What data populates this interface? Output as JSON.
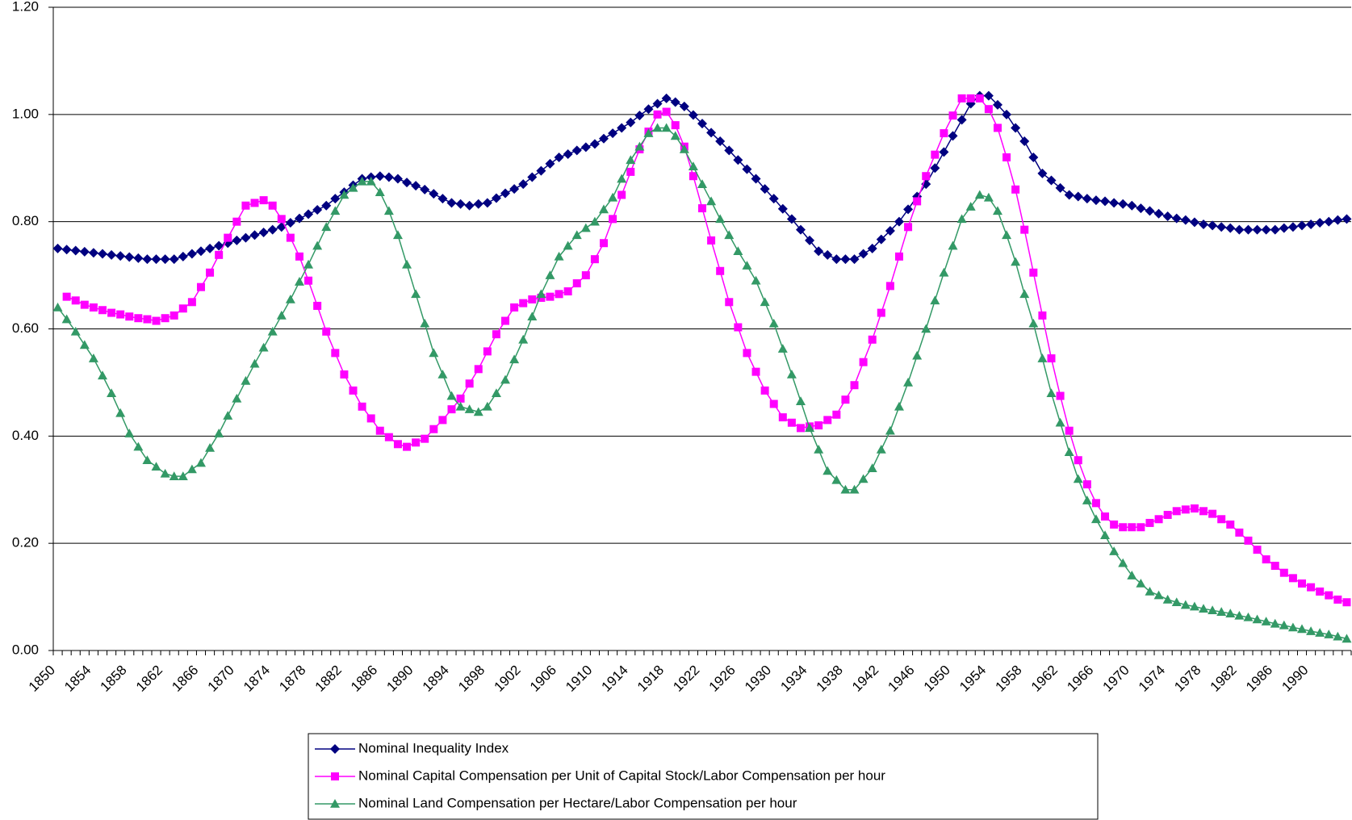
{
  "chart_data": {
    "type": "line",
    "categories": [
      "1850",
      null,
      null,
      null,
      "1854",
      null,
      null,
      null,
      "1858",
      null,
      null,
      null,
      "1862",
      null,
      null,
      null,
      "1866",
      null,
      null,
      null,
      "1870",
      null,
      null,
      null,
      "1874",
      null,
      null,
      null,
      "1878",
      null,
      null,
      null,
      "1882",
      null,
      null,
      null,
      "1886",
      null,
      null,
      null,
      "1890",
      null,
      null,
      null,
      "1894",
      null,
      null,
      null,
      "1898",
      null,
      null,
      null,
      "1902",
      null,
      null,
      null,
      "1906",
      null,
      null,
      null,
      "1910",
      null,
      null,
      null,
      "1914",
      null,
      null,
      null,
      "1918",
      null,
      null,
      null,
      "1922",
      null,
      null,
      null,
      "1926",
      null,
      null,
      null,
      "1930",
      null,
      null,
      null,
      "1934",
      null,
      null,
      null,
      "1938",
      null,
      null,
      null,
      "1942",
      null,
      null,
      null,
      "1946",
      null,
      null,
      null,
      "1950",
      null,
      null,
      null,
      "1954",
      null,
      null,
      null,
      "1958",
      null,
      null,
      null,
      "1962",
      null,
      null,
      null,
      "1966",
      null,
      null,
      null,
      "1970",
      null,
      null,
      null,
      "1974",
      null,
      null,
      null,
      "1978",
      null,
      null,
      null,
      "1982",
      null,
      null,
      null,
      "1986",
      null,
      null,
      null,
      "1990",
      null,
      null,
      null,
      null
    ],
    "series": [
      {
        "name": "Nominal Inequality Index",
        "color": "#000080",
        "marker": "diamond",
        "values": [
          0.75,
          0.748,
          0.746,
          0.744,
          0.742,
          0.74,
          0.738,
          0.736,
          0.734,
          0.732,
          0.73,
          0.73,
          0.73,
          0.73,
          0.735,
          0.74,
          0.745,
          0.75,
          0.755,
          0.76,
          0.765,
          0.77,
          0.775,
          0.78,
          0.785,
          0.79,
          0.798,
          0.806,
          0.814,
          0.822,
          0.83,
          0.843,
          0.855,
          0.868,
          0.88,
          0.883,
          0.885,
          0.883,
          0.88,
          0.873,
          0.867,
          0.86,
          0.852,
          0.843,
          0.835,
          0.833,
          0.83,
          0.833,
          0.835,
          0.844,
          0.853,
          0.861,
          0.87,
          0.883,
          0.895,
          0.908,
          0.92,
          0.926,
          0.933,
          0.939,
          0.945,
          0.955,
          0.965,
          0.975,
          0.985,
          0.998,
          1.01,
          1.02,
          1.03,
          1.023,
          1.015,
          0.999,
          0.983,
          0.966,
          0.95,
          0.933,
          0.915,
          0.898,
          0.88,
          0.861,
          0.843,
          0.824,
          0.805,
          0.785,
          0.765,
          0.745,
          0.738,
          0.73,
          0.73,
          0.73,
          0.74,
          0.75,
          0.767,
          0.783,
          0.8,
          0.823,
          0.847,
          0.87,
          0.9,
          0.93,
          0.96,
          0.99,
          1.02,
          1.035,
          1.035,
          1.018,
          1.0,
          0.975,
          0.95,
          0.92,
          0.89,
          0.877,
          0.863,
          0.85,
          0.847,
          0.843,
          0.84,
          0.838,
          0.835,
          0.833,
          0.83,
          0.825,
          0.82,
          0.815,
          0.81,
          0.806,
          0.803,
          0.799,
          0.795,
          0.793,
          0.79,
          0.788,
          0.785,
          0.785,
          0.785,
          0.785,
          0.785,
          0.788,
          0.79,
          0.793,
          0.795,
          0.798,
          0.8,
          0.803,
          0.805
        ]
      },
      {
        "name": "Nominal Capital Compensation per Unit of Capital Stock/Labor Compensation per hour",
        "color": "#FF00FF",
        "marker": "square",
        "values": [
          null,
          0.66,
          0.653,
          0.645,
          0.64,
          0.635,
          0.63,
          0.627,
          0.623,
          0.62,
          0.618,
          0.615,
          0.62,
          0.625,
          0.638,
          0.65,
          0.678,
          0.705,
          0.738,
          0.77,
          0.8,
          0.83,
          0.835,
          0.84,
          0.83,
          0.805,
          0.77,
          0.735,
          0.69,
          0.643,
          0.595,
          0.555,
          0.515,
          0.485,
          0.455,
          0.433,
          0.41,
          0.398,
          0.385,
          0.38,
          0.388,
          0.395,
          0.413,
          0.43,
          0.45,
          0.47,
          0.498,
          0.525,
          0.558,
          0.59,
          0.615,
          0.64,
          0.648,
          0.655,
          0.658,
          0.66,
          0.665,
          0.67,
          0.685,
          0.7,
          0.73,
          0.76,
          0.805,
          0.85,
          0.893,
          0.935,
          0.968,
          1.0,
          1.005,
          0.98,
          0.94,
          0.885,
          0.825,
          0.765,
          0.708,
          0.65,
          0.603,
          0.555,
          0.52,
          0.485,
          0.46,
          0.435,
          0.425,
          0.415,
          0.418,
          0.42,
          0.43,
          0.44,
          0.468,
          0.495,
          0.538,
          0.58,
          0.63,
          0.68,
          0.735,
          0.79,
          0.838,
          0.885,
          0.925,
          0.965,
          0.998,
          1.03,
          1.03,
          1.03,
          1.01,
          0.975,
          0.92,
          0.86,
          0.785,
          0.705,
          0.625,
          0.545,
          0.475,
          0.41,
          0.355,
          0.31,
          0.275,
          0.25,
          0.235,
          0.23,
          0.23,
          0.23,
          0.238,
          0.245,
          0.253,
          0.26,
          0.263,
          0.265,
          0.26,
          0.255,
          0.245,
          0.235,
          0.22,
          0.205,
          0.188,
          0.17,
          0.158,
          0.145,
          0.135,
          0.125,
          0.118,
          0.11,
          0.103,
          0.095,
          0.09
        ]
      },
      {
        "name": "Nominal Land Compensation per Hectare/Labor Compensation per hour",
        "color": "#339966",
        "marker": "triangle",
        "values": [
          0.64,
          0.618,
          0.595,
          0.57,
          0.545,
          0.513,
          0.48,
          0.443,
          0.405,
          0.38,
          0.355,
          0.343,
          0.33,
          0.325,
          0.325,
          0.338,
          0.35,
          0.378,
          0.405,
          0.438,
          0.47,
          0.503,
          0.535,
          0.565,
          0.595,
          0.625,
          0.655,
          0.688,
          0.72,
          0.755,
          0.79,
          0.82,
          0.85,
          0.863,
          0.875,
          0.875,
          0.855,
          0.82,
          0.775,
          0.72,
          0.665,
          0.61,
          0.555,
          0.515,
          0.475,
          0.455,
          0.45,
          0.445,
          0.455,
          0.48,
          0.505,
          0.543,
          0.58,
          0.623,
          0.665,
          0.7,
          0.735,
          0.755,
          0.775,
          0.788,
          0.8,
          0.823,
          0.845,
          0.88,
          0.915,
          0.94,
          0.965,
          0.975,
          0.975,
          0.96,
          0.935,
          0.903,
          0.87,
          0.838,
          0.805,
          0.775,
          0.745,
          0.718,
          0.69,
          0.65,
          0.61,
          0.563,
          0.515,
          0.465,
          0.415,
          0.375,
          0.335,
          0.318,
          0.3,
          0.3,
          0.32,
          0.34,
          0.375,
          0.41,
          0.455,
          0.5,
          0.55,
          0.6,
          0.653,
          0.705,
          0.755,
          0.805,
          0.828,
          0.85,
          0.845,
          0.82,
          0.775,
          0.725,
          0.665,
          0.61,
          0.545,
          0.48,
          0.425,
          0.37,
          0.32,
          0.28,
          0.245,
          0.215,
          0.185,
          0.163,
          0.14,
          0.125,
          0.11,
          0.103,
          0.095,
          0.09,
          0.085,
          0.082,
          0.078,
          0.075,
          0.072,
          0.069,
          0.065,
          0.062,
          0.058,
          0.054,
          0.05,
          0.047,
          0.043,
          0.04,
          0.036,
          0.033,
          0.03,
          0.026,
          0.022
        ]
      }
    ],
    "ylim": [
      0,
      1.2
    ],
    "yticks": [
      {
        "value": 0,
        "label": "0.00"
      },
      {
        "value": 0.2,
        "label": "0.20"
      },
      {
        "value": 0.4,
        "label": "0.40"
      },
      {
        "value": 0.6,
        "label": "0.60"
      },
      {
        "value": 0.8,
        "label": "0.80"
      },
      {
        "value": 1.0,
        "label": "1.00"
      },
      {
        "value": 1.2,
        "label": "1.20"
      }
    ],
    "grid": true,
    "legend": "bottom"
  }
}
